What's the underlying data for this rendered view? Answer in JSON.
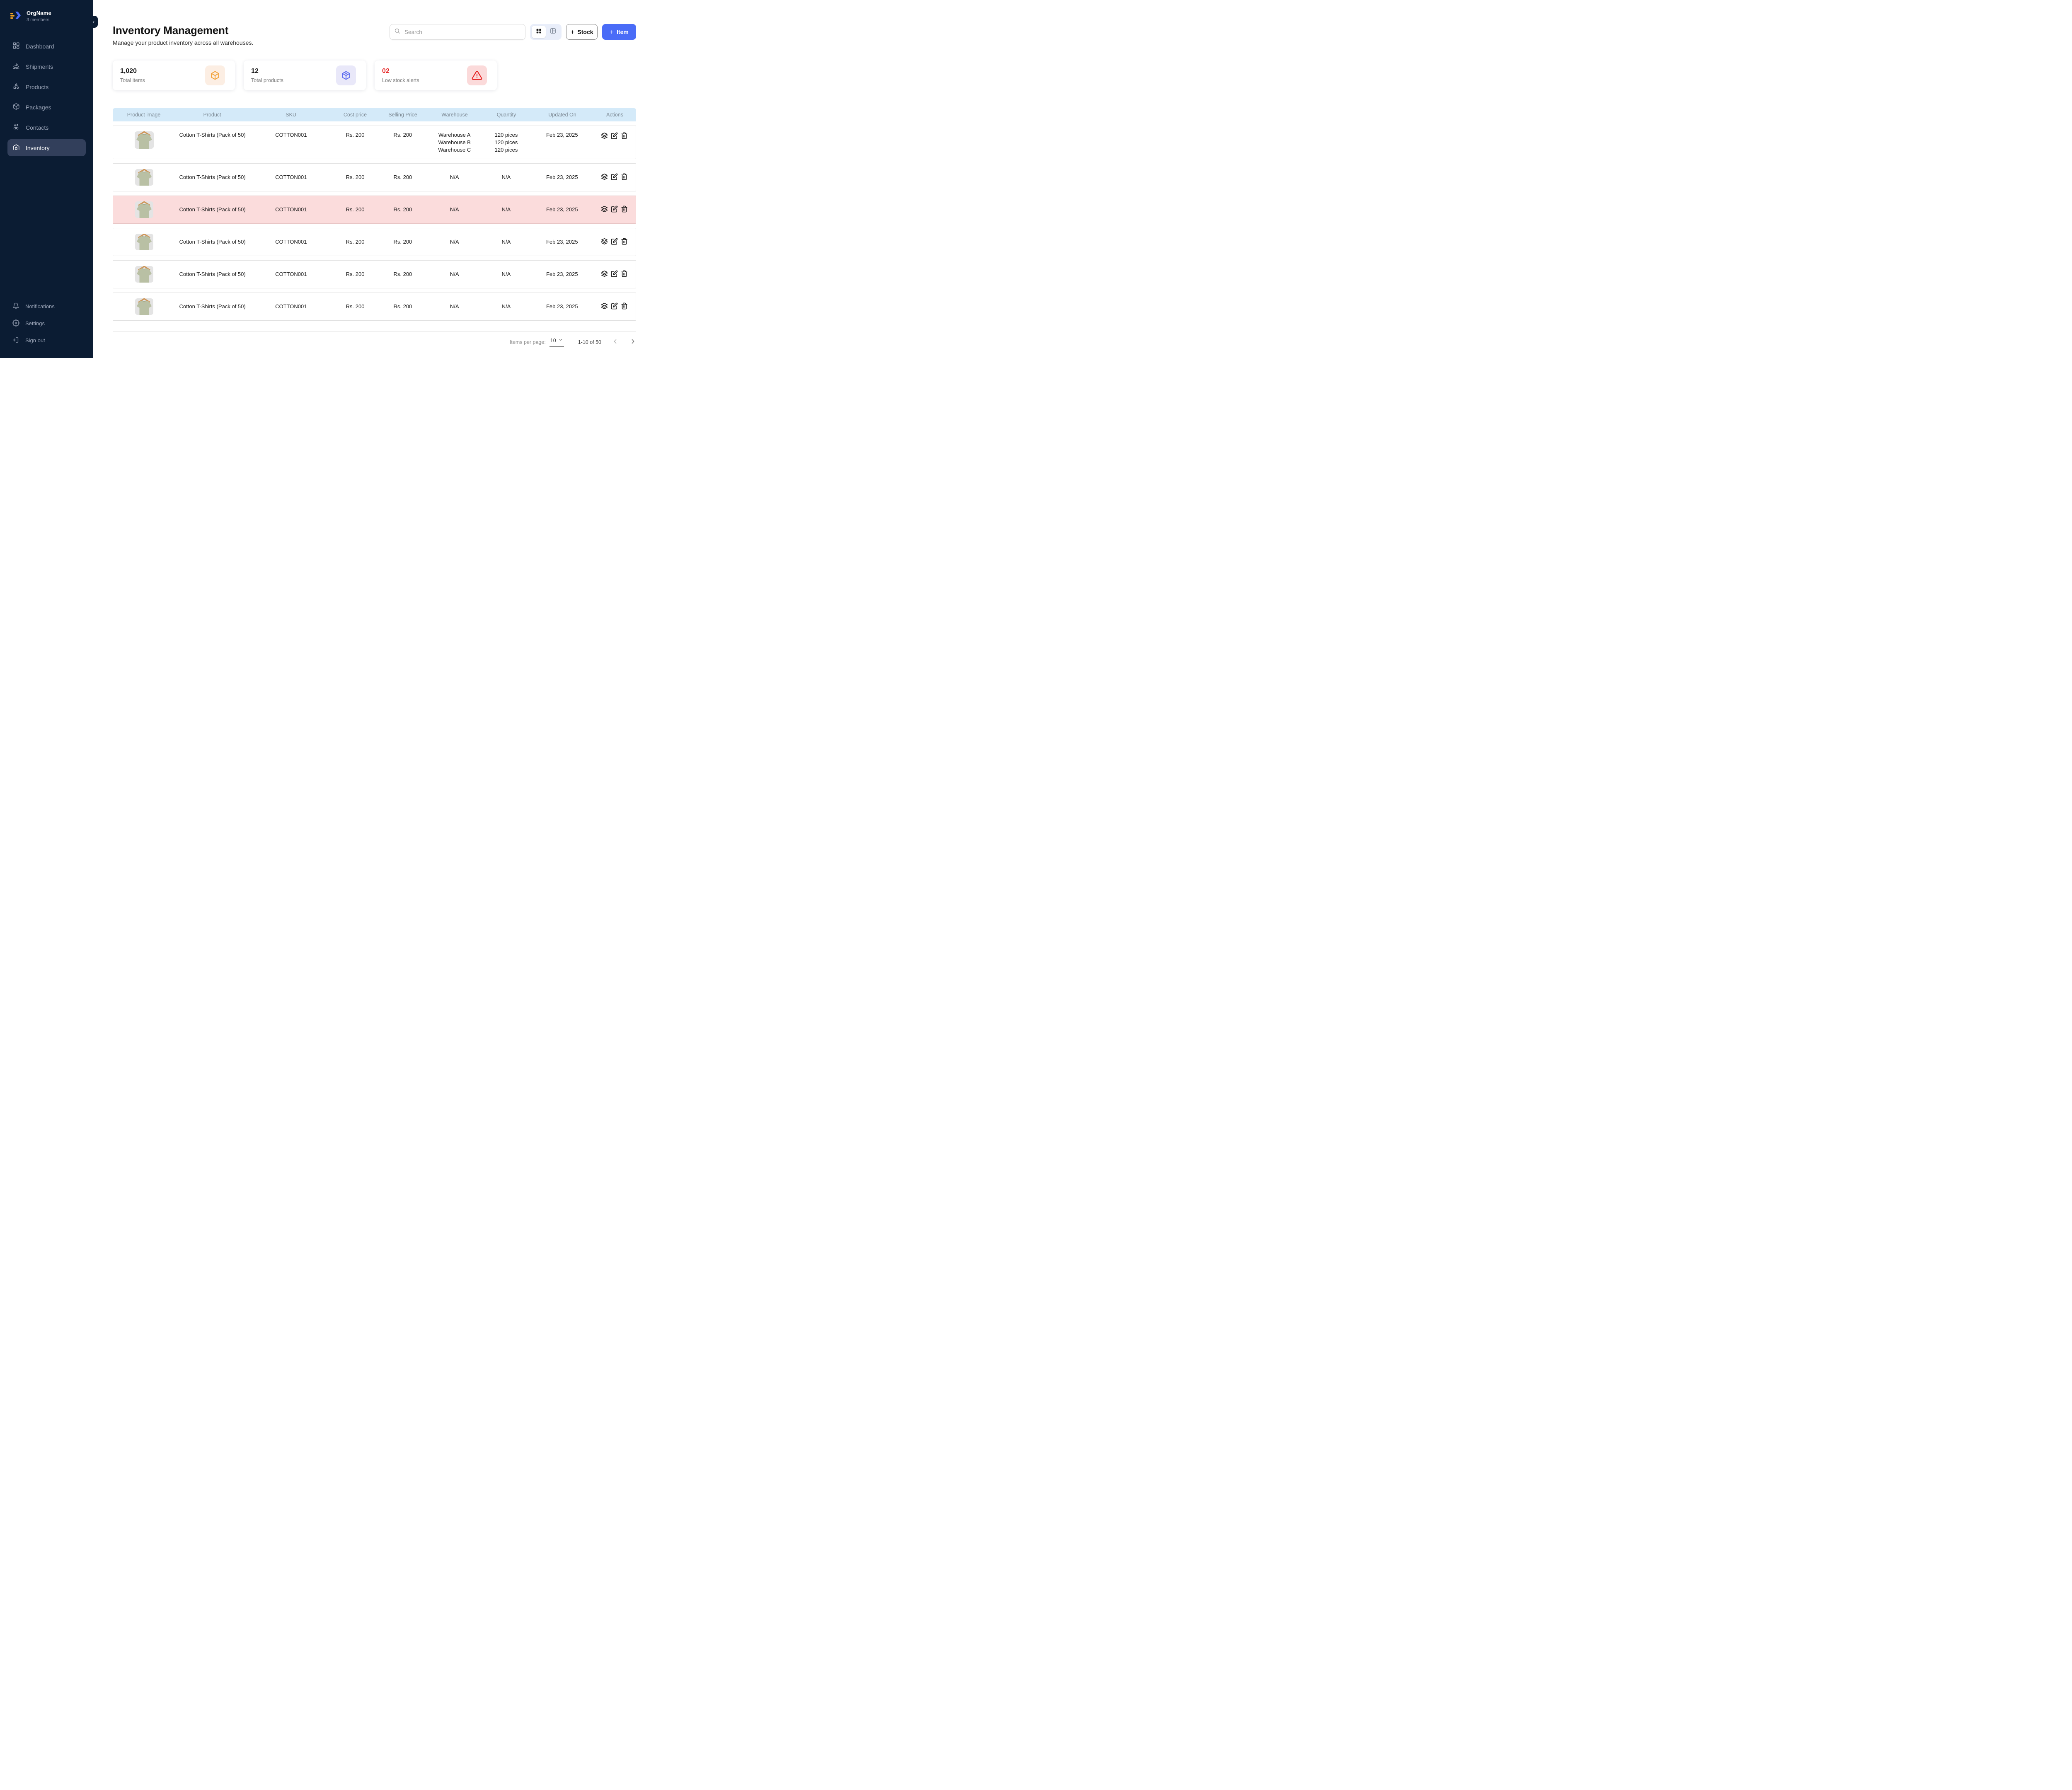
{
  "colors": {
    "accent": "#4A6CF7",
    "sidebar_bg": "#0B1C33",
    "table_header_bg": "#D4EAF9",
    "highlight_row_bg": "#FBDCDC",
    "alert_red": "#E51C1C",
    "stat1_icon": "#F2A33C",
    "stat1_bg": "#FCEEE3",
    "stat2_icon": "#5F6EF0",
    "stat2_bg": "#E9E8F9",
    "stat3_icon": "#E51C1C",
    "stat3_bg": "#FBDADA"
  },
  "org": {
    "name": "OrgName",
    "members": "3 members"
  },
  "sidebar": {
    "collapse_icon": "chevron-left-icon",
    "items": [
      {
        "label": "Dashboard",
        "icon": "dashboard-icon",
        "active": false
      },
      {
        "label": "Shipments",
        "icon": "ship-icon",
        "active": false
      },
      {
        "label": "Products",
        "icon": "shapes-icon",
        "active": false
      },
      {
        "label": "Packages",
        "icon": "package-icon",
        "active": false
      },
      {
        "label": "Contacts",
        "icon": "contacts-icon",
        "active": false
      },
      {
        "label": "Inventory",
        "icon": "warehouse-icon",
        "active": true
      }
    ],
    "footer_items": [
      {
        "label": "Notifications",
        "icon": "bell-icon"
      },
      {
        "label": "Settings",
        "icon": "gear-icon"
      },
      {
        "label": "Sign out",
        "icon": "sign-out-icon"
      }
    ]
  },
  "header": {
    "title": "Inventory Management",
    "subtitle": "Manage your product inventory across all warehouses.",
    "search_placeholder": "Search",
    "view_toggle_icons": [
      "grid-view-icon",
      "table-view-icon"
    ],
    "plus": "+",
    "stock_button_label": "Stock",
    "item_button_label": "Item"
  },
  "stats": [
    {
      "value": "1,020",
      "label": "Total items",
      "icon": "box-icon"
    },
    {
      "value": "12",
      "label": "Total products",
      "icon": "package-icon"
    },
    {
      "value": "02",
      "label": "Low stock alerts",
      "icon": "warning-triangle-icon"
    }
  ],
  "table": {
    "columns": [
      "Product image",
      "Product",
      "SKU",
      "Cost price",
      "Selling Price",
      "Warehouse",
      "Quantity",
      "Updated On",
      "Actions"
    ],
    "action_icons": [
      "layers-icon",
      "edit-icon",
      "trash-icon"
    ],
    "rows": [
      {
        "product": "Cotton T-Shirts (Pack of 50)",
        "sku": "COTTON001",
        "cost": "Rs. 200",
        "selling": "Rs. 200",
        "warehouses": [
          "Warehouse A",
          "Warehouse B",
          "Warehouse C"
        ],
        "quantities": [
          "120 pices",
          "120 pices",
          "120 pices"
        ],
        "updated": "Feb 23, 2025",
        "highlighted": false
      },
      {
        "product": "Cotton T-Shirts (Pack of 50)",
        "sku": "COTTON001",
        "cost": "Rs. 200",
        "selling": "Rs. 200",
        "warehouses": [
          "N/A"
        ],
        "quantities": [
          "N/A"
        ],
        "updated": "Feb 23, 2025",
        "highlighted": false
      },
      {
        "product": "Cotton T-Shirts (Pack of 50)",
        "sku": "COTTON001",
        "cost": "Rs. 200",
        "selling": "Rs. 200",
        "warehouses": [
          "N/A"
        ],
        "quantities": [
          "N/A"
        ],
        "updated": "Feb 23, 2025",
        "highlighted": true
      },
      {
        "product": "Cotton T-Shirts (Pack of 50)",
        "sku": "COTTON001",
        "cost": "Rs. 200",
        "selling": "Rs. 200",
        "warehouses": [
          "N/A"
        ],
        "quantities": [
          "N/A"
        ],
        "updated": "Feb 23, 2025",
        "highlighted": false
      },
      {
        "product": "Cotton T-Shirts (Pack of 50)",
        "sku": "COTTON001",
        "cost": "Rs. 200",
        "selling": "Rs. 200",
        "warehouses": [
          "N/A"
        ],
        "quantities": [
          "N/A"
        ],
        "updated": "Feb 23, 2025",
        "highlighted": false
      },
      {
        "product": "Cotton T-Shirts (Pack of 50)",
        "sku": "COTTON001",
        "cost": "Rs. 200",
        "selling": "Rs. 200",
        "warehouses": [
          "N/A"
        ],
        "quantities": [
          "N/A"
        ],
        "updated": "Feb 23, 2025",
        "highlighted": false
      }
    ]
  },
  "pagination": {
    "items_per_page_label": "Items per page:",
    "per_page": "10",
    "range": "1-10 of 50",
    "prev_icon": "chevron-left-icon",
    "next_icon": "chevron-right-icon"
  }
}
